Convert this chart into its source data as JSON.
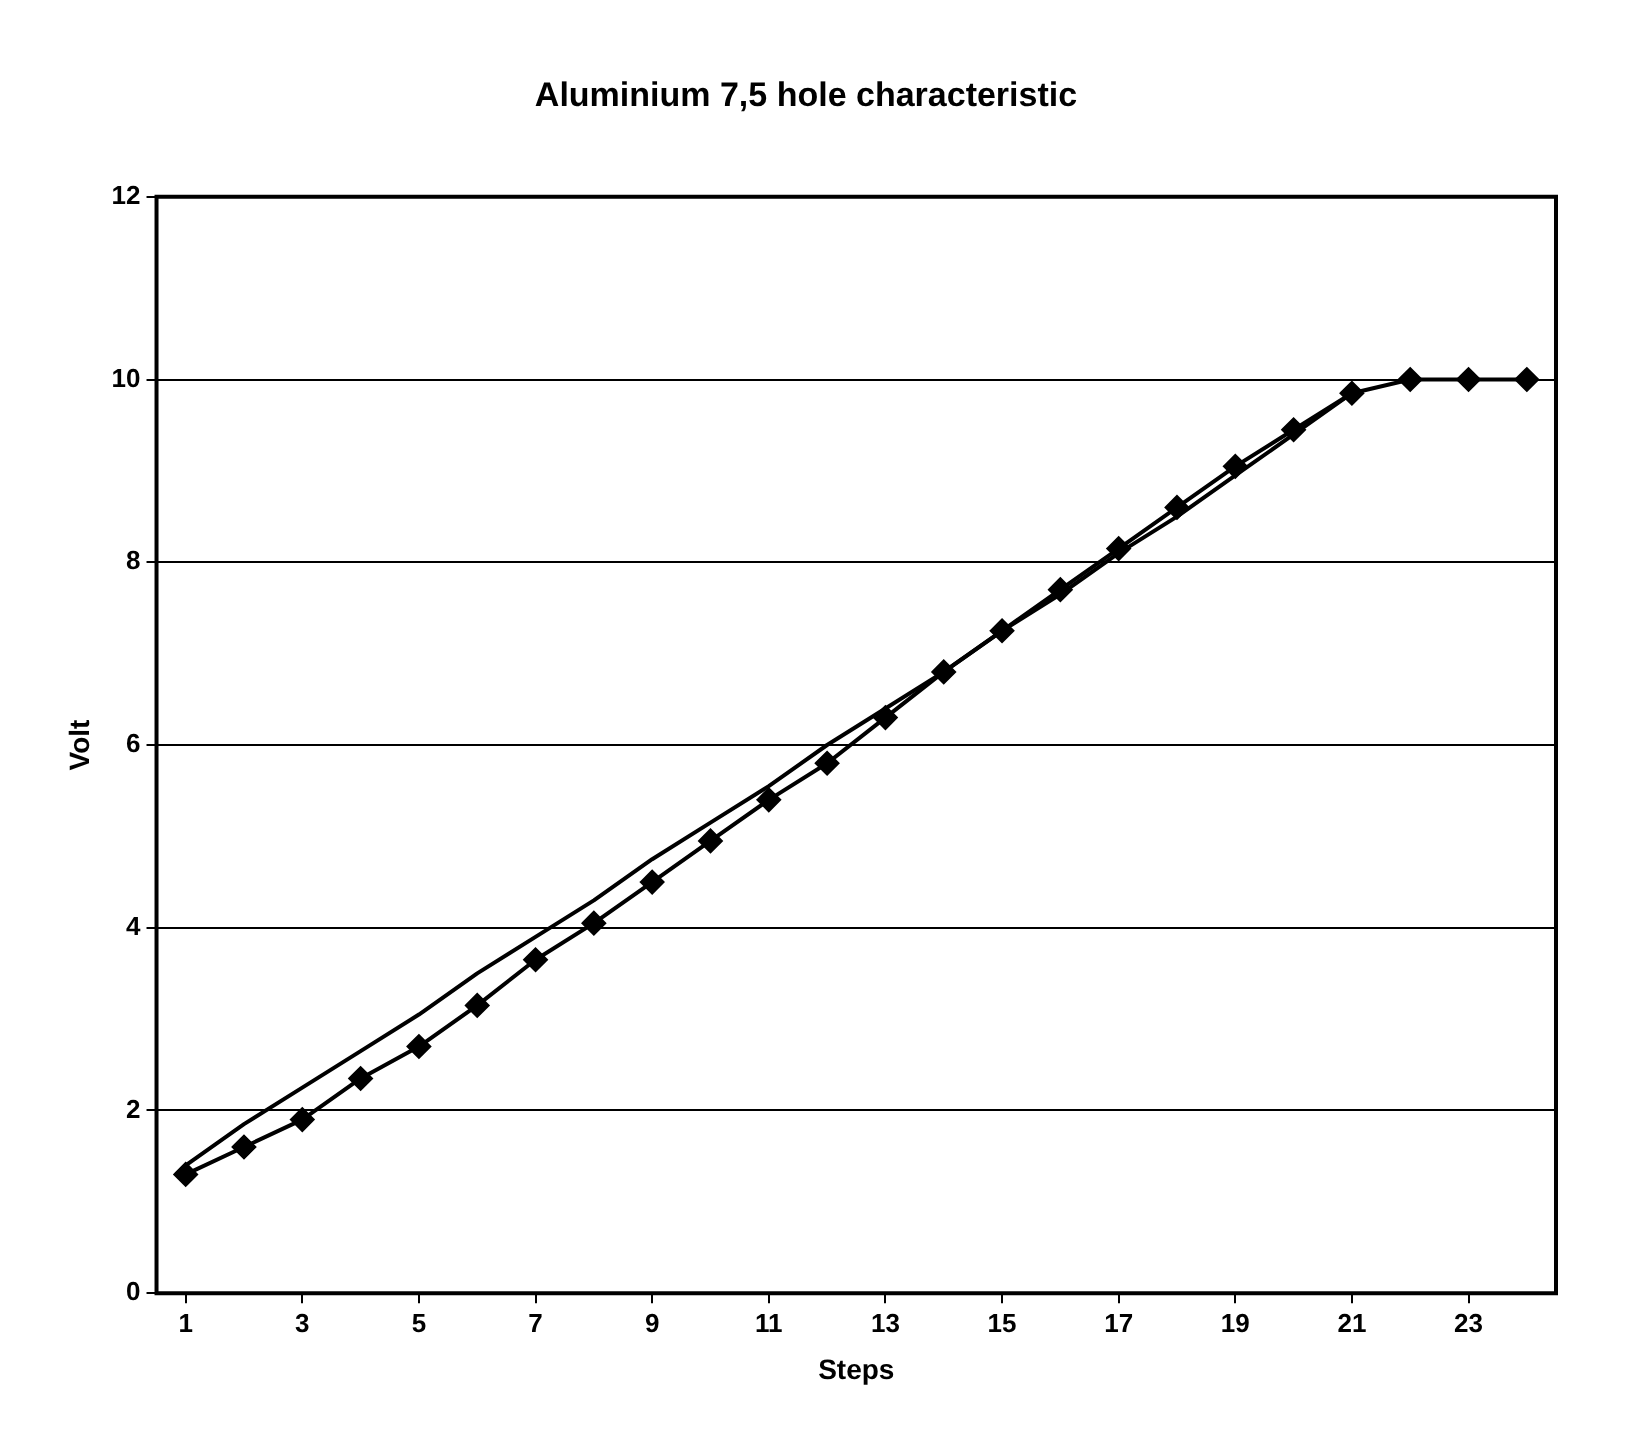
{
  "chart_data": {
    "type": "line",
    "title": "Aluminium 7,5 hole characteristic",
    "xlabel": "Steps",
    "ylabel": "Volt",
    "x": [
      1,
      2,
      3,
      4,
      5,
      6,
      7,
      8,
      9,
      10,
      11,
      12,
      13,
      14,
      15,
      16,
      17,
      18,
      19,
      20,
      21,
      22,
      23,
      24
    ],
    "xlim": [
      0.5,
      24.5
    ],
    "xticks": [
      1,
      3,
      5,
      7,
      9,
      11,
      13,
      15,
      17,
      19,
      21,
      23
    ],
    "series": [
      {
        "color": "#000000",
        "marker": "diamond",
        "values": [
          1.3,
          1.6,
          1.9,
          2.35,
          2.7,
          3.15,
          3.65,
          4.05,
          4.5,
          4.95,
          5.4,
          5.8,
          6.3,
          6.8,
          7.25,
          7.7,
          8.15,
          8.6,
          9.05,
          9.45,
          9.85,
          10,
          10,
          10
        ]
      },
      {
        "color": "#000000",
        "marker": "none",
        "values": [
          1.4,
          1.85,
          2.25,
          2.65,
          3.05,
          3.5,
          3.9,
          4.3,
          4.75,
          5.15,
          5.55,
          6.0,
          6.4,
          6.8,
          7.25,
          7.65,
          8.1,
          8.5,
          8.95,
          9.4,
          9.85,
          null,
          null,
          null
        ]
      }
    ],
    "ylim": [
      0,
      12
    ],
    "yticks": [
      0,
      2,
      4,
      6,
      8,
      10,
      12
    ],
    "grid": "y",
    "legend": false
  }
}
